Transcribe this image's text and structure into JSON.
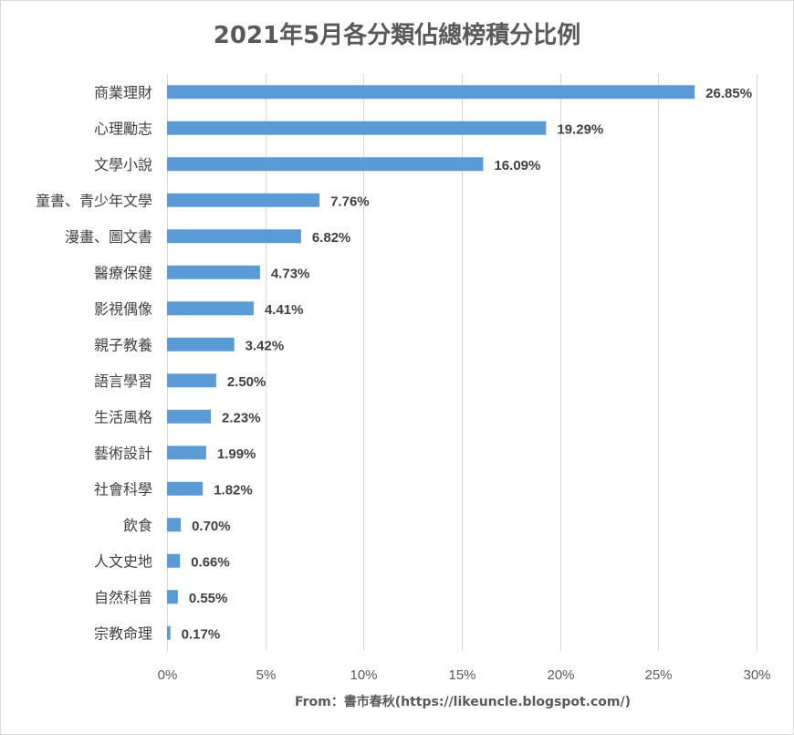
{
  "title": "2021年5月各分類佔總榜積分比例",
  "source": "From：書市春秋(https://likeuncle.blogspot.com/)",
  "colors": {
    "bar": "#5b9bd5",
    "grid": "#d9d9d9",
    "text": "#404040"
  },
  "chart_data": {
    "type": "bar",
    "orientation": "horizontal",
    "title": "2021年5月各分類佔總榜積分比例",
    "categories": [
      "商業理財",
      "心理勵志",
      "文學小說",
      "童書、青少年文學",
      "漫畫、圖文書",
      "醫療保健",
      "影視偶像",
      "親子教養",
      "語言學習",
      "生活風格",
      "藝術設計",
      "社會科學",
      "飲食",
      "人文史地",
      "自然科普",
      "宗教命理"
    ],
    "values": [
      26.85,
      19.29,
      16.09,
      7.76,
      6.82,
      4.73,
      4.41,
      3.42,
      2.5,
      2.23,
      1.99,
      1.82,
      0.7,
      0.66,
      0.55,
      0.17
    ],
    "value_labels": [
      "26.85%",
      "19.29%",
      "16.09%",
      "7.76%",
      "6.82%",
      "4.73%",
      "4.41%",
      "3.42%",
      "2.50%",
      "2.23%",
      "1.99%",
      "1.82%",
      "0.70%",
      "0.66%",
      "0.55%",
      "0.17%"
    ],
    "xlim": [
      0,
      30
    ],
    "xticks": [
      0,
      5,
      10,
      15,
      20,
      25,
      30
    ],
    "xtick_labels": [
      "0%",
      "5%",
      "10%",
      "15%",
      "20%",
      "25%",
      "30%"
    ],
    "grid": true,
    "legend": "none"
  }
}
